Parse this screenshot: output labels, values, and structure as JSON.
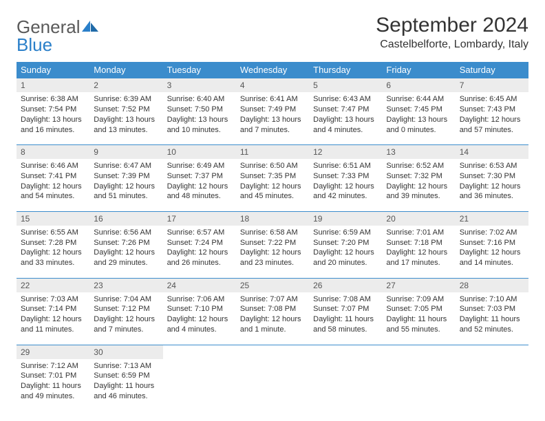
{
  "logo": {
    "word1": "General",
    "word2": "Blue"
  },
  "title": "September 2024",
  "location": "Castelbelforte, Lombardy, Italy",
  "colors": {
    "header_bg": "#3b8ccc",
    "header_text": "#ffffff",
    "daynum_bg": "#ececec",
    "border": "#3b8ccc",
    "logo_gray": "#5a5a5a",
    "logo_blue": "#2a7fc9"
  },
  "day_headers": [
    "Sunday",
    "Monday",
    "Tuesday",
    "Wednesday",
    "Thursday",
    "Friday",
    "Saturday"
  ],
  "weeks": [
    [
      {
        "n": "1",
        "sr": "6:38 AM",
        "ss": "7:54 PM",
        "dl": "13 hours and 16 minutes."
      },
      {
        "n": "2",
        "sr": "6:39 AM",
        "ss": "7:52 PM",
        "dl": "13 hours and 13 minutes."
      },
      {
        "n": "3",
        "sr": "6:40 AM",
        "ss": "7:50 PM",
        "dl": "13 hours and 10 minutes."
      },
      {
        "n": "4",
        "sr": "6:41 AM",
        "ss": "7:49 PM",
        "dl": "13 hours and 7 minutes."
      },
      {
        "n": "5",
        "sr": "6:43 AM",
        "ss": "7:47 PM",
        "dl": "13 hours and 4 minutes."
      },
      {
        "n": "6",
        "sr": "6:44 AM",
        "ss": "7:45 PM",
        "dl": "13 hours and 0 minutes."
      },
      {
        "n": "7",
        "sr": "6:45 AM",
        "ss": "7:43 PM",
        "dl": "12 hours and 57 minutes."
      }
    ],
    [
      {
        "n": "8",
        "sr": "6:46 AM",
        "ss": "7:41 PM",
        "dl": "12 hours and 54 minutes."
      },
      {
        "n": "9",
        "sr": "6:47 AM",
        "ss": "7:39 PM",
        "dl": "12 hours and 51 minutes."
      },
      {
        "n": "10",
        "sr": "6:49 AM",
        "ss": "7:37 PM",
        "dl": "12 hours and 48 minutes."
      },
      {
        "n": "11",
        "sr": "6:50 AM",
        "ss": "7:35 PM",
        "dl": "12 hours and 45 minutes."
      },
      {
        "n": "12",
        "sr": "6:51 AM",
        "ss": "7:33 PM",
        "dl": "12 hours and 42 minutes."
      },
      {
        "n": "13",
        "sr": "6:52 AM",
        "ss": "7:32 PM",
        "dl": "12 hours and 39 minutes."
      },
      {
        "n": "14",
        "sr": "6:53 AM",
        "ss": "7:30 PM",
        "dl": "12 hours and 36 minutes."
      }
    ],
    [
      {
        "n": "15",
        "sr": "6:55 AM",
        "ss": "7:28 PM",
        "dl": "12 hours and 33 minutes."
      },
      {
        "n": "16",
        "sr": "6:56 AM",
        "ss": "7:26 PM",
        "dl": "12 hours and 29 minutes."
      },
      {
        "n": "17",
        "sr": "6:57 AM",
        "ss": "7:24 PM",
        "dl": "12 hours and 26 minutes."
      },
      {
        "n": "18",
        "sr": "6:58 AM",
        "ss": "7:22 PM",
        "dl": "12 hours and 23 minutes."
      },
      {
        "n": "19",
        "sr": "6:59 AM",
        "ss": "7:20 PM",
        "dl": "12 hours and 20 minutes."
      },
      {
        "n": "20",
        "sr": "7:01 AM",
        "ss": "7:18 PM",
        "dl": "12 hours and 17 minutes."
      },
      {
        "n": "21",
        "sr": "7:02 AM",
        "ss": "7:16 PM",
        "dl": "12 hours and 14 minutes."
      }
    ],
    [
      {
        "n": "22",
        "sr": "7:03 AM",
        "ss": "7:14 PM",
        "dl": "12 hours and 11 minutes."
      },
      {
        "n": "23",
        "sr": "7:04 AM",
        "ss": "7:12 PM",
        "dl": "12 hours and 7 minutes."
      },
      {
        "n": "24",
        "sr": "7:06 AM",
        "ss": "7:10 PM",
        "dl": "12 hours and 4 minutes."
      },
      {
        "n": "25",
        "sr": "7:07 AM",
        "ss": "7:08 PM",
        "dl": "12 hours and 1 minute."
      },
      {
        "n": "26",
        "sr": "7:08 AM",
        "ss": "7:07 PM",
        "dl": "11 hours and 58 minutes."
      },
      {
        "n": "27",
        "sr": "7:09 AM",
        "ss": "7:05 PM",
        "dl": "11 hours and 55 minutes."
      },
      {
        "n": "28",
        "sr": "7:10 AM",
        "ss": "7:03 PM",
        "dl": "11 hours and 52 minutes."
      }
    ],
    [
      {
        "n": "29",
        "sr": "7:12 AM",
        "ss": "7:01 PM",
        "dl": "11 hours and 49 minutes."
      },
      {
        "n": "30",
        "sr": "7:13 AM",
        "ss": "6:59 PM",
        "dl": "11 hours and 46 minutes."
      },
      null,
      null,
      null,
      null,
      null
    ]
  ],
  "labels": {
    "sunrise": "Sunrise:",
    "sunset": "Sunset:",
    "daylight": "Daylight:"
  }
}
